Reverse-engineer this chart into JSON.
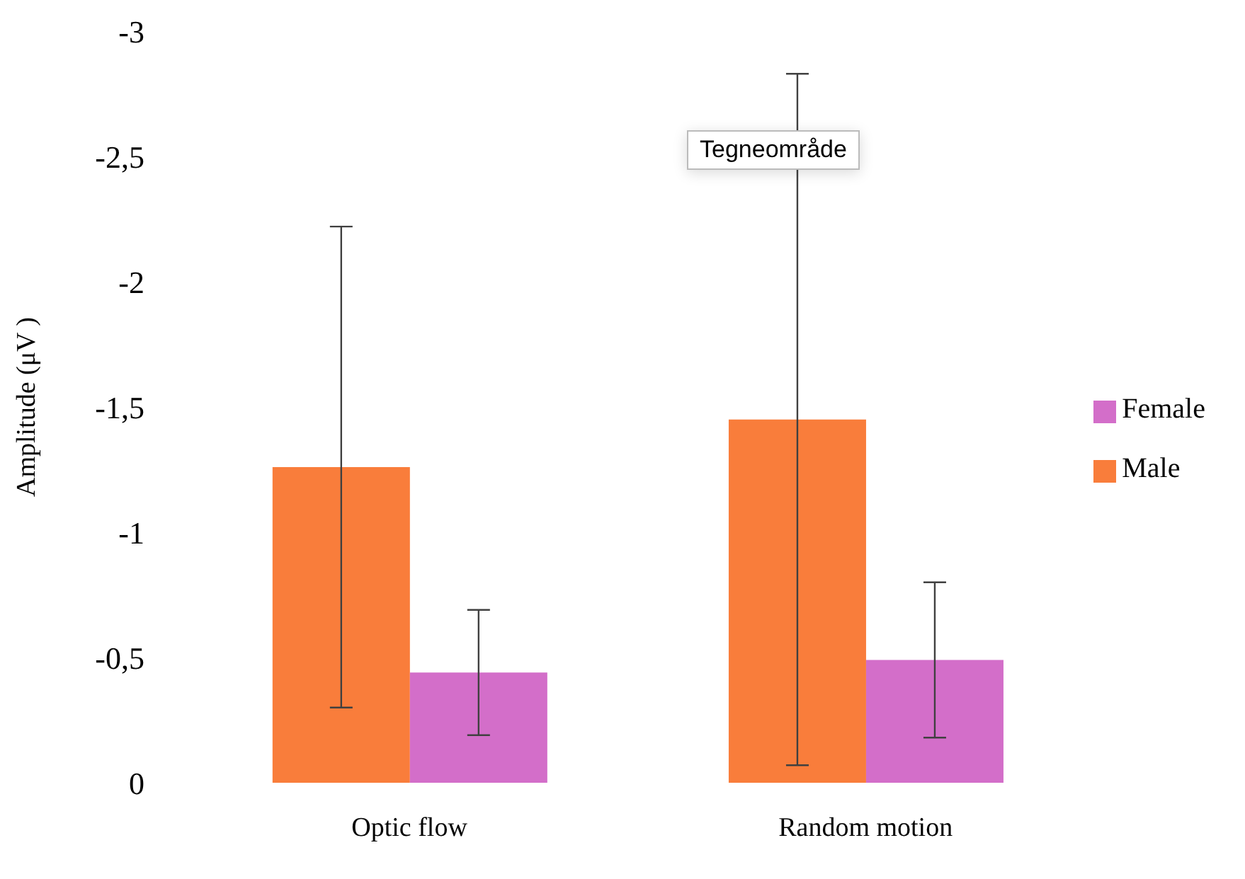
{
  "chart_data": {
    "type": "bar",
    "ylabel": "Amplitude (μV )",
    "categories": [
      "Optic flow",
      "Random motion"
    ],
    "series": [
      {
        "name": "Male",
        "color": "#f97d3b",
        "values": [
          -1.26,
          -1.45
        ],
        "errors": [
          0.96,
          1.38
        ]
      },
      {
        "name": "Female",
        "color": "#d36ec9",
        "values": [
          -0.44,
          -0.49
        ],
        "errors": [
          0.25,
          0.31
        ]
      }
    ],
    "ylim": [
      0,
      -3
    ],
    "yticks": [
      {
        "value": 0,
        "label": "0"
      },
      {
        "value": -0.5,
        "label": "-0,5"
      },
      {
        "value": -1,
        "label": "-1"
      },
      {
        "value": -1.5,
        "label": "-1,5"
      },
      {
        "value": -2,
        "label": "-2"
      },
      {
        "value": -2.5,
        "label": "-2,5"
      },
      {
        "value": -3,
        "label": "-3"
      }
    ],
    "grid": false,
    "legend": "right",
    "annotations": [
      "Tegneområde"
    ]
  }
}
